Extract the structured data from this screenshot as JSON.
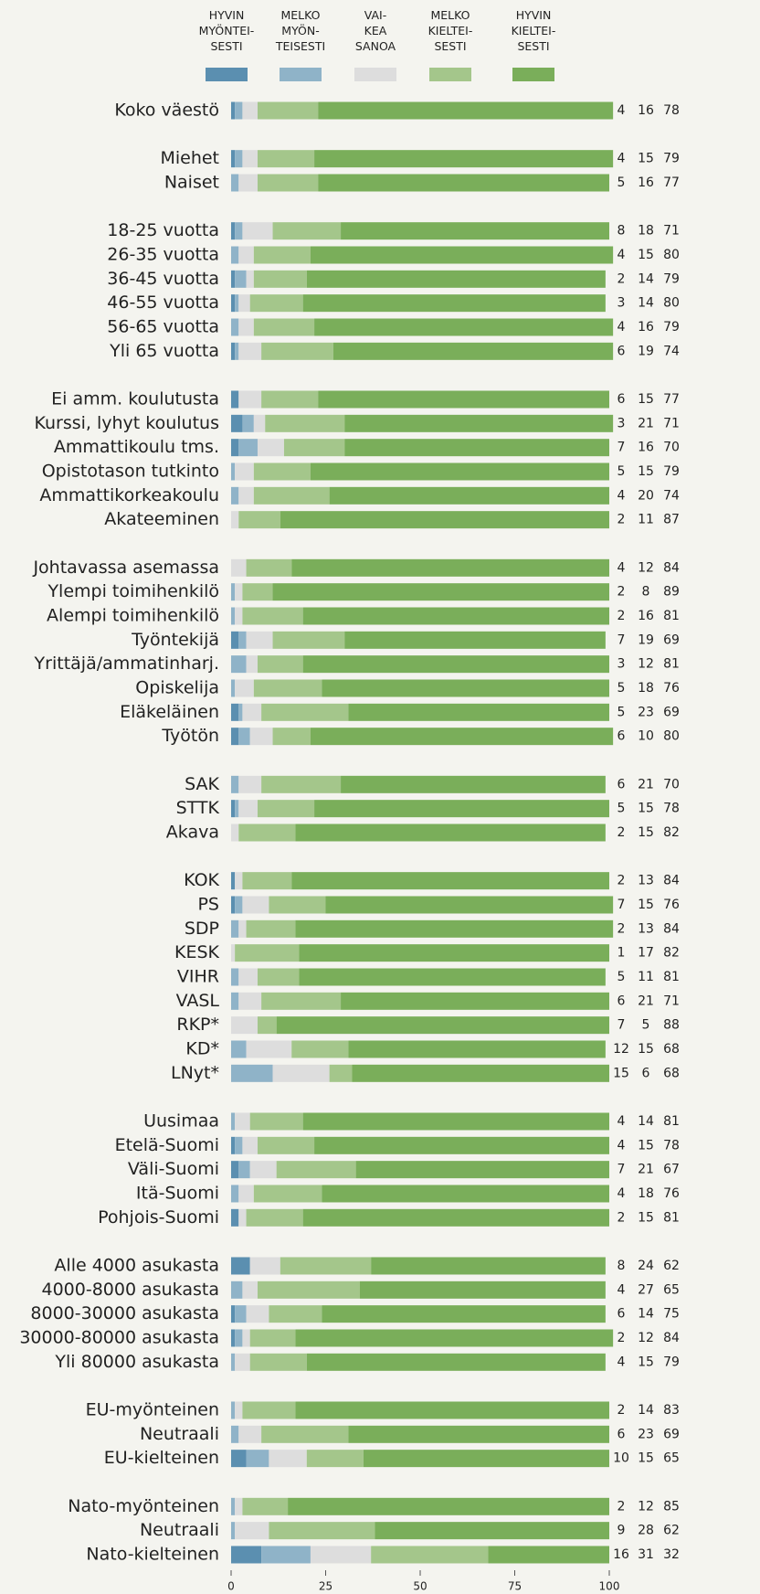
{
  "chart_data": {
    "type": "stacked-barh",
    "categories": [
      "Koko väestö",
      null,
      "Miehet",
      "Naiset",
      null,
      "18-25 vuotta",
      "26-35 vuotta",
      "36-45 vuotta",
      "46-55 vuotta",
      "56-65 vuotta",
      "Yli 65 vuotta",
      null,
      "Ei amm. koulutusta",
      "Kurssi, lyhyt koulutus",
      "Ammattikoulu tms.",
      "Opistotason tutkinto",
      "Ammattikorkeakoulu",
      "Akateeminen",
      null,
      "Johtavassa asemassa",
      "Ylempi toimihenkilö",
      "Alempi toimihenkilö",
      "Työntekijä",
      "Yrittäjä/ammatinharj.",
      "Opiskelija",
      "Eläkeläinen",
      "Työtön",
      null,
      "SAK",
      "STTK",
      "Akava",
      null,
      "KOK",
      "PS",
      "SDP",
      "KESK",
      "VIHR",
      "VASL",
      "RKP*",
      "KD*",
      "LNyt*",
      null,
      "Uusimaa",
      "Etelä-Suomi",
      "Väli-Suomi",
      "Itä-Suomi",
      "Pohjois-Suomi",
      null,
      "Alle 4000 asukasta",
      "4000-8000 asukasta",
      "8000-30000 asukasta",
      "30000-80000 asukasta",
      "Yli 80000 asukasta",
      null,
      "EU-myönteinen",
      "Neutraali",
      "EU-kielteinen",
      null,
      "Nato-myönteinen",
      "Neutraali",
      "Nato-kielteinen"
    ],
    "series": [
      {
        "name": "HYVIN\nMYÖNTEI-\nSESTI",
        "color": "#5b8fb0",
        "values": [
          1,
          null,
          1,
          0,
          null,
          1,
          0,
          1,
          1,
          0,
          1,
          null,
          2,
          3,
          2,
          0,
          0,
          0,
          null,
          0,
          0,
          0,
          2,
          0,
          0,
          2,
          2,
          null,
          0,
          1,
          0,
          null,
          1,
          1,
          0,
          0,
          0,
          0,
          0,
          0,
          0,
          null,
          0,
          1,
          2,
          0,
          2,
          null,
          5,
          0,
          1,
          1,
          0,
          null,
          0,
          0,
          4,
          null,
          0,
          0,
          8
        ]
      },
      {
        "name": "MELKO\nMYÖN-\nTEISESTI",
        "color": "#8fb3c8",
        "values": [
          2,
          null,
          2,
          2,
          null,
          2,
          2,
          3,
          1,
          2,
          1,
          null,
          0,
          3,
          5,
          1,
          2,
          0,
          null,
          0,
          1,
          1,
          2,
          4,
          1,
          1,
          3,
          null,
          2,
          1,
          0,
          null,
          0,
          2,
          2,
          0,
          2,
          2,
          0,
          4,
          11,
          null,
          1,
          2,
          3,
          2,
          0,
          null,
          0,
          3,
          3,
          2,
          1,
          null,
          1,
          2,
          6,
          null,
          1,
          1,
          13
        ]
      },
      {
        "name": "VAI-\nKEA\nSANOA",
        "color": "#dddddd",
        "values": [
          4,
          null,
          4,
          5,
          null,
          8,
          4,
          2,
          3,
          4,
          6,
          null,
          6,
          3,
          7,
          5,
          4,
          2,
          null,
          4,
          2,
          2,
          7,
          3,
          5,
          5,
          6,
          null,
          6,
          5,
          2,
          null,
          2,
          7,
          2,
          1,
          5,
          6,
          7,
          12,
          15,
          null,
          4,
          4,
          7,
          4,
          2,
          null,
          8,
          4,
          6,
          2,
          4,
          null,
          2,
          6,
          10,
          null,
          2,
          9,
          16
        ]
      },
      {
        "name": "MELKO\nKIELTEI-\nSESTI",
        "color": "#a4c68b",
        "values": [
          16,
          null,
          15,
          16,
          null,
          18,
          15,
          14,
          14,
          16,
          19,
          null,
          15,
          21,
          16,
          15,
          20,
          11,
          null,
          12,
          8,
          16,
          19,
          12,
          18,
          23,
          10,
          null,
          21,
          15,
          15,
          null,
          13,
          15,
          13,
          17,
          11,
          21,
          5,
          15,
          6,
          null,
          14,
          15,
          21,
          18,
          15,
          null,
          24,
          27,
          14,
          12,
          15,
          null,
          14,
          23,
          15,
          null,
          12,
          28,
          31
        ]
      },
      {
        "name": "HYVIN\nKIELTEI-\nSESTI",
        "color": "#7aae5a",
        "values": [
          78,
          null,
          79,
          77,
          null,
          71,
          80,
          79,
          80,
          79,
          74,
          null,
          77,
          71,
          70,
          79,
          74,
          87,
          null,
          84,
          89,
          81,
          69,
          81,
          76,
          69,
          80,
          null,
          70,
          78,
          82,
          null,
          84,
          76,
          84,
          82,
          81,
          71,
          88,
          68,
          68,
          null,
          81,
          78,
          67,
          76,
          81,
          null,
          62,
          65,
          75,
          84,
          79,
          null,
          83,
          69,
          65,
          null,
          85,
          62,
          32
        ]
      }
    ],
    "xlim": [
      0,
      100
    ],
    "xticks": [
      0,
      25,
      50,
      75,
      100
    ]
  }
}
